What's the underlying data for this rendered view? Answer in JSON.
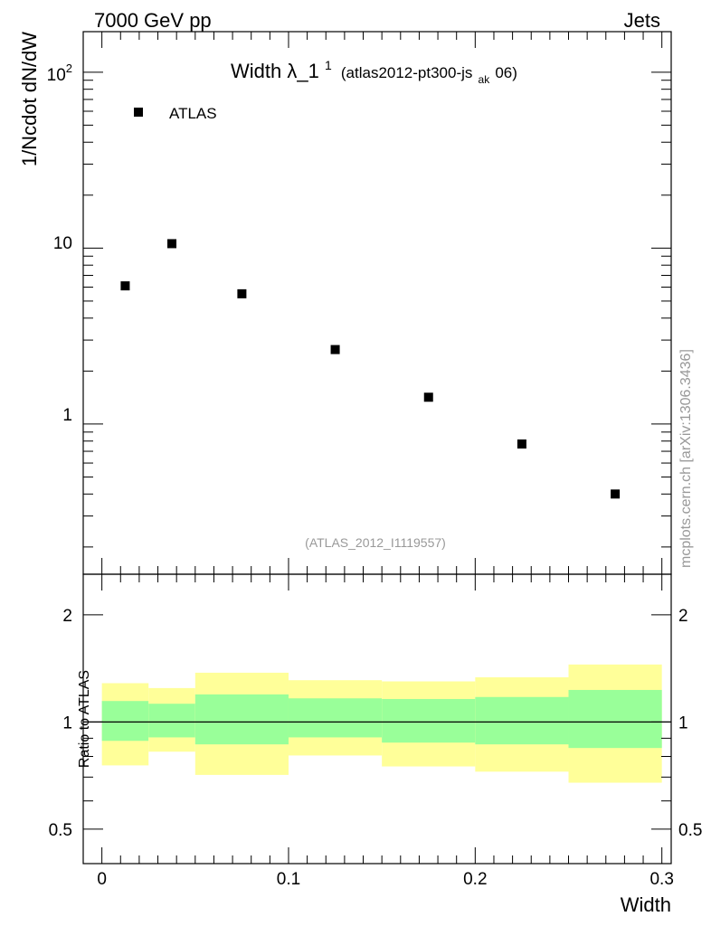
{
  "header": {
    "left": "7000 GeV pp",
    "right": "Jets"
  },
  "side_label": "mcplots.cern.ch [arXiv:1306.3436]",
  "chart_data": [
    {
      "type": "scatter",
      "title_main": "Width λ_1",
      "title_sup": "1",
      "title_sub_pre": "(atlas2012-pt300-js",
      "title_sub_sub": "ak",
      "title_sub_post": "06)",
      "ylabel": "1/Ncdot dN/dW",
      "yscale": "log",
      "ylim": [
        0.14,
        170
      ],
      "xlim": [
        -0.01,
        0.305
      ],
      "ytick_labels": {
        "exp_base": "10",
        "exp_power": "2",
        "ten": "10",
        "one": "1"
      },
      "legend": {
        "label": "ATLAS",
        "placement": "top-left"
      },
      "watermark": "(ATLAS_2012_I1119557)",
      "series": [
        {
          "name": "ATLAS",
          "x": [
            0.0125,
            0.0375,
            0.075,
            0.125,
            0.175,
            0.225,
            0.275
          ],
          "y": [
            6.1,
            10.6,
            5.5,
            2.65,
            1.42,
            0.77,
            0.4
          ]
        }
      ]
    },
    {
      "type": "area",
      "ylabel": "Ratio to ATLAS",
      "xlabel": "Width",
      "yscale": "log",
      "ylim": [
        0.4,
        2.6
      ],
      "xlim": [
        -0.01,
        0.305
      ],
      "x_ticks": [
        "0",
        "0.1",
        "0.2",
        "0.3"
      ],
      "y_ticks": [
        "0.5",
        "1",
        "2"
      ],
      "bins": [
        {
          "x0": 0.0,
          "x1": 0.025,
          "inner_lo": 0.885,
          "inner_hi": 1.145,
          "outer_lo": 0.755,
          "outer_hi": 1.285
        },
        {
          "x0": 0.025,
          "x1": 0.05,
          "inner_lo": 0.905,
          "inner_hi": 1.125,
          "outer_lo": 0.825,
          "outer_hi": 1.245
        },
        {
          "x0": 0.05,
          "x1": 0.1,
          "inner_lo": 0.865,
          "inner_hi": 1.195,
          "outer_lo": 0.71,
          "outer_hi": 1.375
        },
        {
          "x0": 0.1,
          "x1": 0.15,
          "inner_lo": 0.905,
          "inner_hi": 1.165,
          "outer_lo": 0.805,
          "outer_hi": 1.31
        },
        {
          "x0": 0.15,
          "x1": 0.2,
          "inner_lo": 0.875,
          "inner_hi": 1.16,
          "outer_lo": 0.75,
          "outer_hi": 1.3
        },
        {
          "x0": 0.2,
          "x1": 0.25,
          "inner_lo": 0.865,
          "inner_hi": 1.175,
          "outer_lo": 0.725,
          "outer_hi": 1.335
        },
        {
          "x0": 0.25,
          "x1": 0.3,
          "inner_lo": 0.845,
          "inner_hi": 1.23,
          "outer_lo": 0.675,
          "outer_hi": 1.45
        }
      ],
      "band_colors": {
        "inner": "#99ff99",
        "outer": "#ffff99"
      }
    }
  ]
}
